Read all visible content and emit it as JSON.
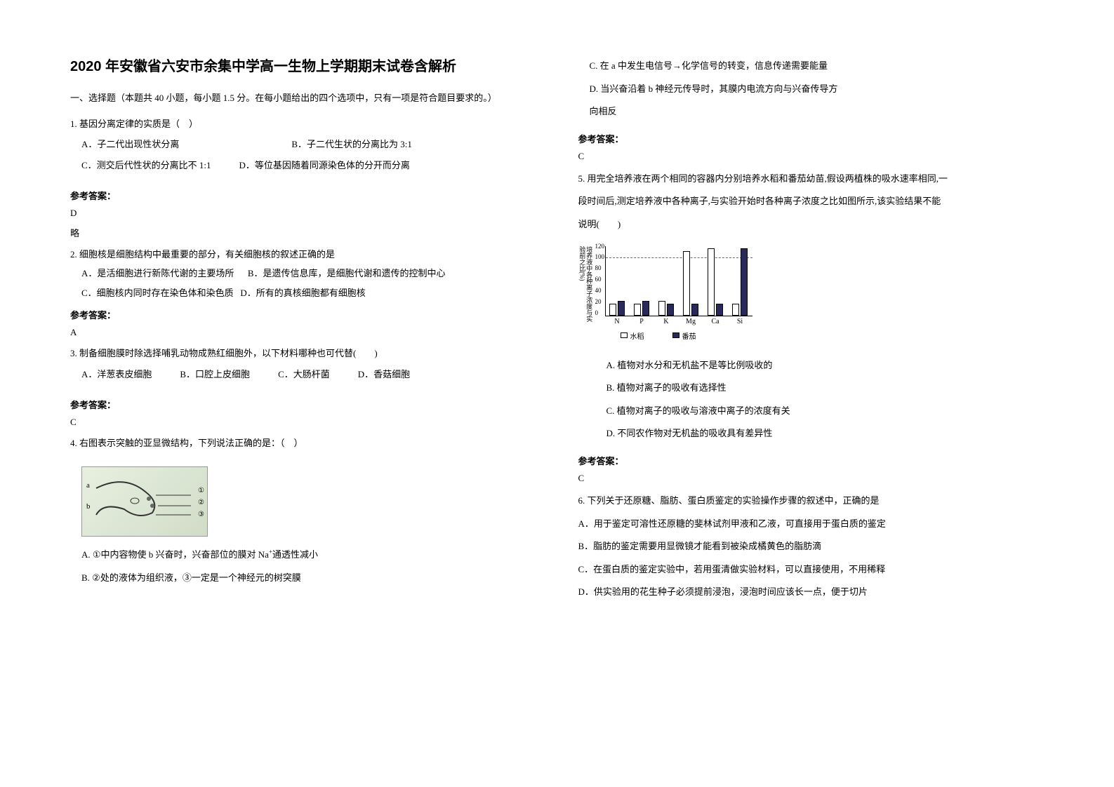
{
  "title": "2020 年安徽省六安市余集中学高一生物上学期期末试卷含解析",
  "section_header": "一、选择题（本题共 40 小题，每小题 1.5 分。在每小题给出的四个选项中，只有一项是符合题目要求的。）",
  "q1": {
    "stem": "1. 基因分离定律的实质是（　）",
    "optA": "A．子二代出现性状分离",
    "optB": "B．子二代生状的分离比为 3:1",
    "optC": "C．测交后代性状的分离比不 1:1",
    "optD": "D．等位基因随着同源染色体的分开而分离",
    "answer_label": "参考答案：",
    "answer": "D",
    "note": "略"
  },
  "q2": {
    "stem": "2. 细胞核是细胞结构中最重要的部分，有关细胞核的叙述正确的是",
    "optA": "A．是活细胞进行新陈代谢的主要场所",
    "optB": "B．是遗传信息库，是细胞代谢和遗传的控制中心",
    "optC": "C．细胞核内同时存在染色体和染色质",
    "optD": "D．所有的真核细胞都有细胞核",
    "answer_label": "参考答案：",
    "answer": "A"
  },
  "q3": {
    "stem": "3. 制备细胞膜时除选择哺乳动物成熟红细胞外，以下材料哪种也可代替(　　)",
    "optA": "A．洋葱表皮细胞",
    "optB": "B．口腔上皮细胞",
    "optC": "C．大肠杆菌",
    "optD": "D．香菇细胞",
    "answer_label": "参考答案：",
    "answer": "C"
  },
  "q4": {
    "stem": "4. 右图表示突触的亚显微结构，下列说法正确的是：（　）",
    "diagram_labels": {
      "a": "a",
      "b": "b",
      "n1": "①",
      "n2": "②",
      "n3": "③"
    },
    "optA_pre": "A. ①中内容物使 b 兴奋时，兴奋部位的膜对 Na",
    "optA_sup": "+",
    "optA_post": "通透性减小",
    "optB": "B. ②处的液体为组织液，③一定是一个神经元的树突膜",
    "optC": "C. 在 a 中发生电信号→化学信号的转变，信息传递需要能量",
    "optD_1": "D. 当兴奋沿着 b 神经元传导时，其膜内电流方向与兴奋传导方",
    "optD_2": "向相反",
    "answer_label": "参考答案：",
    "answer": "C"
  },
  "q5": {
    "stem1": "5. 用完全培养液在两个相同的容器内分别培养水稻和番茄幼苗,假设两植株的吸水速率相同,一",
    "stem2": "段时间后,测定培养液中各种离子,与实验开始时各种离子浓度之比如图所示,该实验结果不能",
    "stem3": "说明(　　)",
    "chart": {
      "type": "bar",
      "ylabel": "培养液中各种离子浓度与实验前之比(%)",
      "ylim": [
        0,
        120
      ],
      "ytick_step": 20,
      "yticks": [
        "120",
        "100",
        "80",
        "60",
        "40",
        "20",
        "0"
      ],
      "dashed_ref": 100,
      "categories": [
        "N",
        "P",
        "K",
        "Mg",
        "Ca",
        "Si"
      ],
      "series": [
        {
          "name": "水稻",
          "color": "#ffffff",
          "values": [
            20,
            20,
            25,
            110,
            115,
            20
          ]
        },
        {
          "name": "番茄",
          "color": "#2a2a5a",
          "values": [
            25,
            25,
            20,
            20,
            20,
            115
          ]
        }
      ],
      "legend": [
        "水稻",
        "番茄"
      ]
    },
    "optA": "A. 植物对水分和无机盐不是等比例吸收的",
    "optB": "B. 植物对离子的吸收有选择性",
    "optC": "C. 植物对离子的吸收与溶液中离子的浓度有关",
    "optD": "D. 不同农作物对无机盐的吸收具有差异性",
    "answer_label": "参考答案：",
    "answer": "C"
  },
  "q6": {
    "stem": "6. 下列关于还原糖、脂肪、蛋白质鉴定的实验操作步骤的叙述中，正确的是",
    "optA": "A．用于鉴定可溶性还原糖的斐林试剂甲液和乙液，可直接用于蛋白质的鉴定",
    "optB": "B．脂肪的鉴定需要用显微镜才能看到被染成橘黄色的脂肪滴",
    "optC": "C．在蛋白质的鉴定实验中，若用蛋清做实验材料，可以直接使用，不用稀释",
    "optD": "D．供实验用的花生种子必须提前浸泡，浸泡时间应该长一点，便于切片"
  }
}
